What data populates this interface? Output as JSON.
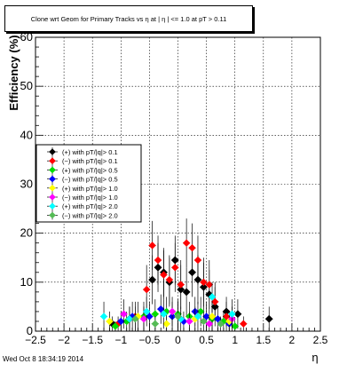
{
  "title": "Clone wrt Geom for Primary Tracks vs  η at | η | <= 1.0 at pT > 0.11",
  "timestamp": "Wed Oct  8 18:34:19 2014",
  "chart_data": {
    "type": "scatter",
    "title": "Clone wrt Geom for Primary Tracks vs  η at | η | <= 1.0 at pT > 0.11",
    "xlabel": "η",
    "ylabel": "Efficiency (%)",
    "xlim": [
      -2.5,
      2.5
    ],
    "ylim": [
      0,
      60
    ],
    "xticks": [
      "−2.5",
      "−2",
      "−1.5",
      "−1",
      "−0.5",
      "0",
      "0.5",
      "1",
      "1.5",
      "2",
      "2.5"
    ],
    "yticks": [
      "0",
      "10",
      "20",
      "30",
      "40",
      "50",
      "60"
    ],
    "grid": true,
    "legend_position": "left-middle",
    "series": [
      {
        "name": "(+) with pT/|q|> 0.1",
        "color": "#000000",
        "x": [
          -1.15,
          -0.85,
          -0.45,
          -0.35,
          -0.25,
          -0.15,
          -0.05,
          0.05,
          0.15,
          0.25,
          0.35,
          0.45,
          0.55,
          0.65,
          0.85,
          1.05,
          1.6
        ],
        "y": [
          1.5,
          2.5,
          10.5,
          13.0,
          12.0,
          10.0,
          14.5,
          8.5,
          8.0,
          12.0,
          10.5,
          9.0,
          7.5,
          5.0,
          4.0,
          3.5,
          2.5
        ],
        "err": [
          1.5,
          2.5,
          5,
          5,
          5,
          5,
          5,
          5,
          5,
          5,
          5,
          5,
          5,
          4,
          3,
          3,
          2.5
        ]
      },
      {
        "name": "(−) with pT/|q|> 0.1",
        "color": "#ff0000",
        "x": [
          -1.05,
          -0.75,
          -0.55,
          -0.45,
          -0.35,
          -0.25,
          -0.15,
          -0.05,
          0.05,
          0.15,
          0.25,
          0.35,
          0.45,
          0.55,
          0.65,
          0.85,
          1.15
        ],
        "y": [
          1.5,
          3.0,
          8.5,
          17.5,
          14.5,
          11.5,
          10.5,
          13.0,
          9.5,
          18.0,
          17.0,
          14.5,
          10.0,
          9.5,
          6.0,
          3.0,
          1.5
        ],
        "err": [
          1.5,
          3,
          5,
          5,
          5,
          5,
          5,
          5,
          5,
          5,
          5,
          5,
          5,
          5,
          4,
          3,
          1.5
        ]
      },
      {
        "name": "(+) with pT/|q|> 0.5",
        "color": "#00dd00",
        "x": [
          -1.1,
          -0.9,
          -0.6,
          -0.4,
          -0.2,
          0.0,
          0.2,
          0.4,
          0.6,
          0.8,
          1.0
        ],
        "y": [
          1.0,
          2.0,
          3.0,
          3.5,
          4.0,
          3.5,
          3.0,
          4.0,
          2.5,
          2.0,
          1.0
        ],
        "err": [
          1,
          2,
          3,
          3,
          3,
          3,
          3,
          3,
          2.5,
          2,
          1
        ]
      },
      {
        "name": "(−) with pT/|q|> 0.5",
        "color": "#0000ff",
        "x": [
          -1.0,
          -0.8,
          -0.5,
          -0.3,
          -0.1,
          0.1,
          0.3,
          0.5,
          0.7,
          0.9
        ],
        "y": [
          2.0,
          3.0,
          3.0,
          4.5,
          3.0,
          2.0,
          4.0,
          3.0,
          2.5,
          1.5
        ],
        "err": [
          2,
          3,
          3,
          3,
          3,
          2,
          3,
          3,
          2.5,
          1.5
        ]
      },
      {
        "name": "(+) with pT/|q|> 1.0",
        "color": "#ffff00",
        "x": [
          -1.2,
          -0.7,
          -0.2,
          0.3,
          0.6,
          0.9
        ],
        "y": [
          2.0,
          3.0,
          1.5,
          2.5,
          3.0,
          2.0
        ],
        "err": [
          2,
          3,
          1.5,
          2.5,
          3,
          2
        ]
      },
      {
        "name": "(−) with pT/|q|> 1.0",
        "color": "#ff00ff",
        "x": [
          -0.95,
          -0.6,
          -0.1,
          0.2,
          0.55,
          0.95
        ],
        "y": [
          3.5,
          2.5,
          4.0,
          2.0,
          1.5,
          2.5
        ],
        "err": [
          3,
          2.5,
          3,
          2,
          1.5,
          2.5
        ]
      },
      {
        "name": "(+) with pT/|q|> 2.0",
        "color": "#00ffff",
        "x": [
          -1.3,
          -0.85,
          -0.55,
          -0.25,
          0.05,
          0.35,
          0.6,
          0.95
        ],
        "y": [
          3.0,
          2.5,
          4.0,
          3.5,
          2.5,
          3.0,
          7.0,
          3.5
        ],
        "err": [
          3,
          2.5,
          3,
          3,
          2.5,
          3,
          3,
          3
        ]
      },
      {
        "name": "(−) with pT/|q|> 2.0",
        "color": "#55bb55",
        "x": [
          -0.75,
          -0.4,
          0.0,
          0.45,
          0.75
        ],
        "y": [
          2.5,
          1.5,
          3.0,
          2.0,
          1.5
        ],
        "err": [
          2.5,
          1.5,
          3,
          2,
          1.5
        ]
      }
    ]
  }
}
